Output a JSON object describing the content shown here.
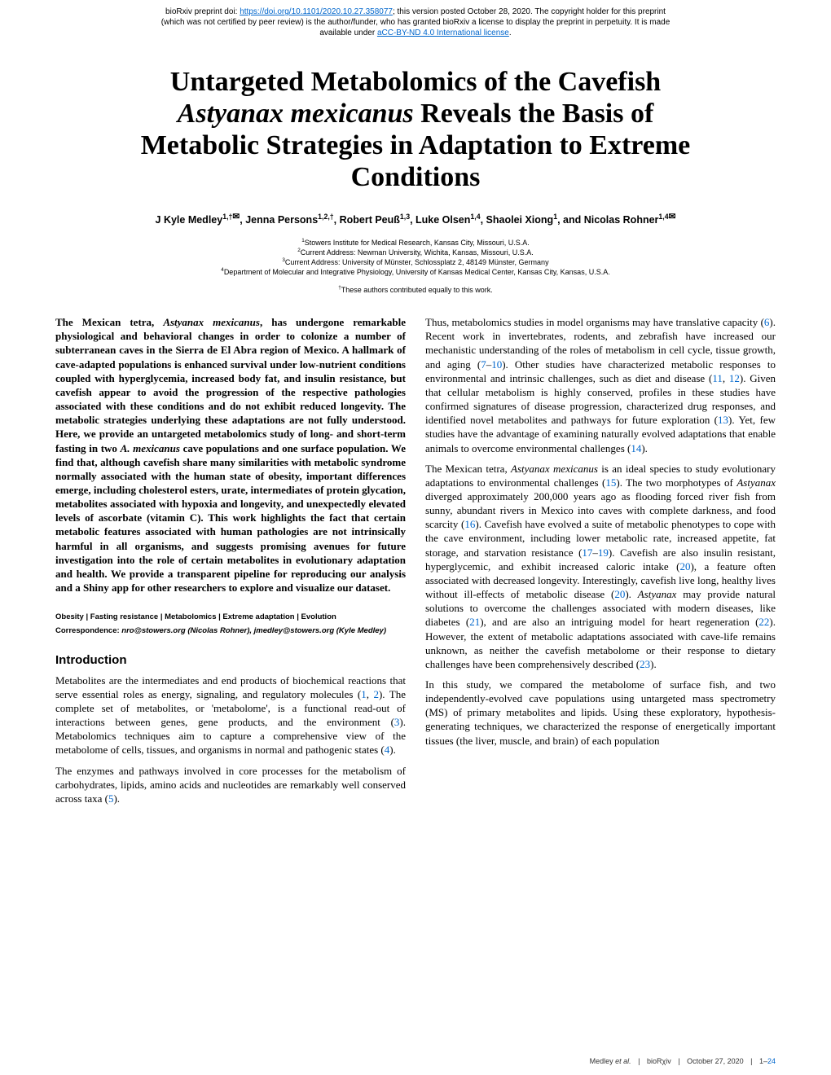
{
  "preprint": {
    "line1_prefix": "bioRxiv preprint doi: ",
    "doi_url": "https://doi.org/10.1101/2020.10.27.358077",
    "line1_suffix": "; this version posted October 28, 2020. The copyright holder for this preprint",
    "line2": "(which was not certified by peer review) is the author/funder, who has granted bioRxiv a license to display the preprint in perpetuity. It is made",
    "line3_prefix": "available under ",
    "license_text": "aCC-BY-ND 4.0 International license",
    "line3_suffix": "."
  },
  "title": {
    "line1": "Untargeted Metabolomics of the Cavefish",
    "species": "Astyanax mexicanus",
    "line2_rest": " Reveals the Basis of",
    "line3": "Metabolic Strategies in Adaptation to Extreme",
    "line4": "Conditions"
  },
  "authors": {
    "a1_name": "J Kyle Medley",
    "a1_sup": "1,†",
    "a2_name": "Jenna Persons",
    "a2_sup": "1,2,†",
    "a3_name": "Robert Peuß",
    "a3_sup": "1,3",
    "a4_name": "Luke Olsen",
    "a4_sup": "1,4",
    "a5_name": "Shaolei Xiong",
    "a5_sup": "1",
    "a6_name": "Nicolas Rohner",
    "a6_sup": "1,4",
    "sep_comma": ", ",
    "sep_and": ", and ",
    "envelope": "✉"
  },
  "affiliations": {
    "aff1": "Stowers Institute for Medical Research, Kansas City, Missouri, U.S.A.",
    "aff2": "Current Address: Newman University, Wichita, Kansas, Missouri, U.S.A.",
    "aff3": "Current Address: University of Münster, Schlossplatz 2, 48149 Münster, Germany",
    "aff4": "Department of Molecular and Integrative Physiology, University of Kansas Medical Center, Kansas City, Kansas, U.S.A.",
    "sup1": "1",
    "sup2": "2",
    "sup3": "3",
    "sup4": "4"
  },
  "equal": "These authors contributed equally to this work.",
  "equal_sup": "†",
  "abstract": {
    "p1_a": "The Mexican tetra, ",
    "p1_species": "Astyanax mexicanus",
    "p1_b": ", has undergone remarkable physiological and behavioral changes in order to colonize a number of subterranean caves in the Sierra de El Abra region of Mexico. A hallmark of cave-adapted populations is enhanced survival under low-nutrient conditions coupled with hyperglycemia, increased body fat, and insulin resistance, but cavefish appear to avoid the progression of the respective pathologies associated with these conditions and do not exhibit reduced longevity. The metabolic strategies underlying these adaptations are not fully understood. Here, we provide an untargeted metabolomics study of long- and short-term fasting in two ",
    "p1_species2": "A. mexicanus",
    "p1_c": " cave populations and one surface population. We find that, although cavefish share many similarities with metabolic syndrome normally associated with the human state of obesity, important differences emerge, including cholesterol esters, urate, intermediates of protein glycation, metabolites associated with hypoxia and longevity, and unexpectedly elevated levels of ascorbate (vitamin C). This work highlights the fact that certain metabolic features associated with human pathologies are not intrinsically harmful in all organisms, and suggests promising avenues for future investigation into the role of certain metabolites in evolutionary adaptation and health. We provide a transparent pipeline for reproducing our analysis and a Shiny app for other researchers to explore and visualize our dataset."
  },
  "keywords": "Obesity | Fasting resistance | Metabolomics | Extreme adaptation | Evolution",
  "correspondence": {
    "label": "Correspondence: ",
    "value": "nro@stowers.org (Nicolas Rohner), jmedley@stowers.org (Kyle Medley)"
  },
  "intro_heading": "Introduction",
  "intro": {
    "p1_a": "Metabolites are the intermediates and end products of biochemical reactions that serve essential roles as energy, signaling, and regulatory molecules (",
    "r1": "1",
    "p1_b": ", ",
    "r2": "2",
    "p1_c": "). The complete set of metabolites, or 'metabolome', is a functional read-out of interactions between genes, gene products, and the environment (",
    "r3": "3",
    "p1_d": "). Metabolomics techniques aim to capture a comprehensive view of the metabolome of cells, tissues, and organisms in normal and pathogenic states (",
    "r4": "4",
    "p1_e": ").",
    "p2_a": "The enzymes and pathways involved in core processes for the metabolism of carbohydrates, lipids, amino acids and nucleotides are remarkably well conserved across taxa (",
    "r5": "5",
    "p2_b": ")."
  },
  "col2": {
    "p1_a": "Thus, metabolomics studies in model organisms may have translative capacity (",
    "r6": "6",
    "p1_b": "). Recent work in invertebrates, rodents, and zebrafish have increased our mechanistic understanding of the roles of metabolism in cell cycle, tissue growth, and aging (",
    "r7": "7",
    "p1_c": "–",
    "r10": "10",
    "p1_d": "). Other studies have characterized metabolic responses to environmental and intrinsic challenges, such as diet and disease (",
    "r11": "11",
    "p1_e": ", ",
    "r12": "12",
    "p1_f": "). Given that cellular metabolism is highly conserved, profiles in these studies have confirmed signatures of disease progression, characterized drug responses, and identified novel metabolites and pathways for future exploration (",
    "r13": "13",
    "p1_g": "). Yet, few studies have the advantage of examining naturally evolved adaptations that enable animals to overcome environmental challenges (",
    "r14": "14",
    "p1_h": ").",
    "p2_a": "The Mexican tetra, ",
    "p2_species": "Astyanax mexicanus",
    "p2_b": " is an ideal species to study evolutionary adaptations to environmental challenges (",
    "r15": "15",
    "p2_c": "). The two morphotypes of ",
    "p2_species2": "Astyanax",
    "p2_d": " diverged approximately 200,000 years ago as flooding forced river fish from sunny, abundant rivers in Mexico into caves with complete darkness, and food scarcity (",
    "r16": "16",
    "p2_e": "). Cavefish have evolved a suite of metabolic phenotypes to cope with the cave environment, including lower metabolic rate, increased appetite, fat storage, and starvation resistance (",
    "r17": "17",
    "p2_f": "–",
    "r19": "19",
    "p2_g": "). Cavefish are also insulin resistant, hyperglycemic, and exhibit increased caloric intake (",
    "r20": "20",
    "p2_h": "), a feature often associated with decreased longevity. Interestingly, cavefish live long, healthy lives without ill-effects of metabolic disease (",
    "r20b": "20",
    "p2_i": "). ",
    "p2_species3": "Astyanax",
    "p2_j": " may provide natural solutions to overcome the challenges associated with modern diseases, like diabetes (",
    "r21": "21",
    "p2_k": "), and are also an intriguing model for heart regeneration (",
    "r22": "22",
    "p2_l": "). However, the extent of metabolic adaptations associated with cave-life remains unknown, as neither the cavefish metabolome or their response to dietary challenges have been comprehensively described (",
    "r23": "23",
    "p2_m": ").",
    "p3": "In this study, we compared the metabolome of surface fish, and two independently-evolved cave populations using untargeted mass spectrometry (MS) of primary metabolites and lipids. Using these exploratory, hypothesis-generating techniques, we characterized the response of energetically important tissues (the liver, muscle, and brain) of each population"
  },
  "footer": {
    "authors": "Medley ",
    "etal": "et al.",
    "biorxiv": "bioRχiv",
    "date": "October 27, 2020",
    "pages_a": "1–",
    "pages_b": "24",
    "sep": " | "
  },
  "colors": {
    "link": "#0066cc",
    "text": "#000000",
    "background": "#ffffff"
  }
}
